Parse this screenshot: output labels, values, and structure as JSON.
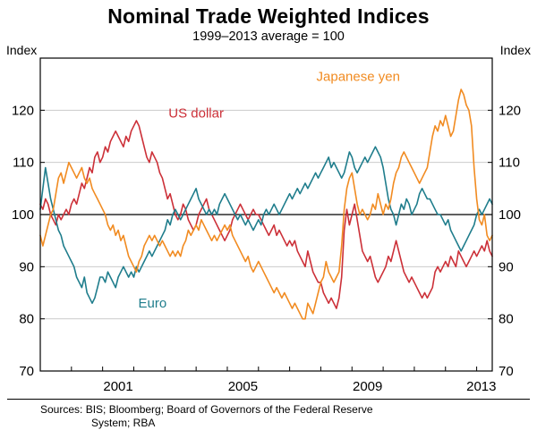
{
  "header": {
    "title": "Nominal Trade Weighted Indices",
    "subtitle": "1999–2013 average = 100"
  },
  "axis": {
    "left_unit": "Index",
    "right_unit": "Index"
  },
  "footer": {
    "sources_line1": "Sources: BIS; Bloomberg; Board of Governors of the Federal Reserve",
    "sources_line2": "System; RBA"
  },
  "chart_data": {
    "type": "line",
    "title": "Nominal Trade Weighted Indices",
    "subtitle": "1999–2013 average = 100",
    "frequency": "monthly",
    "x_start": 1999.0,
    "x_range": [
      1999.0,
      2013.5
    ],
    "y_range": [
      70,
      130
    ],
    "y_ticks": [
      70,
      80,
      90,
      100,
      110,
      120
    ],
    "gridlines": [
      80,
      90,
      110,
      120
    ],
    "reference_line": 100,
    "x_minor_ticks": [
      2000,
      2001,
      2002,
      2003,
      2004,
      2005,
      2006,
      2007,
      2008,
      2009,
      2010,
      2011,
      2012,
      2013
    ],
    "x_tick_labels": [
      {
        "label": "2001",
        "year": 2001.5
      },
      {
        "label": "2005",
        "year": 2005.5
      },
      {
        "label": "2009",
        "year": 2009.5
      },
      {
        "label": "2013",
        "year": 2013.15
      }
    ],
    "colors": {
      "grid": "#cccccc",
      "axis": "#000000"
    },
    "series": [
      {
        "name": "US dollar",
        "color": "#cc3038",
        "values": [
          102,
          101,
          103,
          102,
          100,
          99,
          98,
          100,
          99,
          100,
          101,
          100,
          102,
          103,
          102,
          104,
          106,
          105,
          107,
          109,
          108,
          111,
          112,
          110,
          111,
          113,
          112,
          114,
          115,
          116,
          115,
          114,
          113,
          115,
          114,
          116,
          117,
          118,
          117,
          115,
          113,
          111,
          110,
          112,
          111,
          110,
          108,
          107,
          105,
          103,
          104,
          102,
          100,
          99,
          100,
          102,
          101,
          99,
          98,
          97,
          98,
          100,
          101,
          102,
          103,
          101,
          100,
          99,
          98,
          97,
          96,
          95,
          96,
          97,
          99,
          100,
          101,
          102,
          101,
          100,
          99,
          100,
          101,
          100,
          100,
          99,
          98,
          97,
          96,
          97,
          98,
          96,
          97,
          96,
          95,
          94,
          95,
          94,
          95,
          93,
          92,
          91,
          90,
          93,
          91,
          89,
          88,
          87,
          87,
          85,
          84,
          83,
          84,
          83,
          82,
          84,
          88,
          97,
          101,
          98,
          100,
          102,
          99,
          96,
          93,
          92,
          91,
          92,
          90,
          88,
          87,
          88,
          89,
          90,
          92,
          91,
          93,
          95,
          93,
          91,
          89,
          88,
          87,
          88,
          87,
          86,
          85,
          84,
          85,
          84,
          85,
          86,
          89,
          90,
          89,
          90,
          91,
          90,
          92,
          91,
          90,
          93,
          92,
          91,
          90,
          91,
          92,
          93,
          92,
          93,
          94,
          93,
          95,
          93,
          92
        ]
      },
      {
        "name": "Euro",
        "color": "#1f7d8c",
        "values": [
          101,
          105,
          109,
          106,
          103,
          101,
          99,
          97,
          96,
          94,
          93,
          92,
          91,
          90,
          88,
          87,
          86,
          88,
          85,
          84,
          83,
          84,
          86,
          88,
          88,
          87,
          89,
          88,
          87,
          86,
          88,
          89,
          90,
          89,
          88,
          89,
          88,
          90,
          89,
          90,
          91,
          92,
          93,
          92,
          93,
          94,
          95,
          96,
          97,
          99,
          98,
          100,
          101,
          100,
          99,
          100,
          101,
          102,
          103,
          104,
          105,
          103,
          102,
          101,
          100,
          101,
          100,
          101,
          100,
          102,
          103,
          104,
          103,
          102,
          101,
          100,
          99,
          100,
          99,
          98,
          99,
          98,
          97,
          98,
          99,
          98,
          100,
          101,
          100,
          101,
          102,
          101,
          100,
          101,
          102,
          103,
          104,
          103,
          104,
          105,
          104,
          105,
          106,
          105,
          106,
          107,
          108,
          107,
          108,
          109,
          110,
          111,
          109,
          110,
          109,
          108,
          107,
          108,
          110,
          112,
          111,
          109,
          108,
          109,
          110,
          111,
          110,
          111,
          112,
          113,
          112,
          111,
          109,
          106,
          103,
          101,
          100,
          98,
          100,
          102,
          101,
          103,
          102,
          100,
          101,
          102,
          104,
          105,
          104,
          103,
          103,
          102,
          101,
          100,
          100,
          99,
          98,
          99,
          97,
          96,
          95,
          94,
          93,
          94,
          95,
          96,
          97,
          98,
          100,
          101,
          100,
          101,
          102,
          103,
          102
        ]
      },
      {
        "name": "Japanese yen",
        "color": "#f18b21",
        "values": [
          96,
          94,
          96,
          98,
          100,
          101,
          104,
          107,
          108,
          106,
          108,
          110,
          109,
          108,
          107,
          108,
          109,
          107,
          106,
          107,
          105,
          104,
          103,
          102,
          101,
          100,
          98,
          97,
          98,
          96,
          97,
          95,
          96,
          94,
          92,
          91,
          90,
          89,
          91,
          92,
          94,
          95,
          96,
          95,
          96,
          95,
          94,
          95,
          94,
          93,
          92,
          93,
          92,
          93,
          92,
          94,
          95,
          97,
          96,
          97,
          98,
          97,
          99,
          98,
          97,
          96,
          95,
          96,
          95,
          96,
          97,
          98,
          97,
          98,
          96,
          95,
          94,
          93,
          92,
          91,
          92,
          90,
          89,
          90,
          91,
          90,
          89,
          88,
          87,
          86,
          85,
          86,
          85,
          84,
          85,
          84,
          83,
          82,
          83,
          82,
          81,
          80,
          80,
          83,
          82,
          81,
          83,
          85,
          87,
          88,
          91,
          89,
          88,
          87,
          88,
          89,
          94,
          101,
          105,
          107,
          108,
          105,
          102,
          100,
          101,
          100,
          99,
          100,
          102,
          101,
          104,
          102,
          100,
          102,
          101,
          103,
          106,
          108,
          109,
          111,
          112,
          111,
          110,
          109,
          108,
          107,
          106,
          107,
          108,
          109,
          112,
          115,
          117,
          116,
          118,
          117,
          119,
          117,
          115,
          116,
          119,
          122,
          124,
          123,
          121,
          120,
          117,
          109,
          103,
          99,
          98,
          100,
          96,
          95,
          96
        ]
      }
    ],
    "annotations": [
      {
        "text": "US dollar",
        "year": 2004.0,
        "value": 119.5,
        "color": "#cc3038"
      },
      {
        "text": "Japanese yen",
        "year": 2009.2,
        "value": 126.5,
        "color": "#f18b21"
      },
      {
        "text": "Euro",
        "year": 2002.6,
        "value": 83.0,
        "color": "#1f7d8c"
      }
    ]
  }
}
